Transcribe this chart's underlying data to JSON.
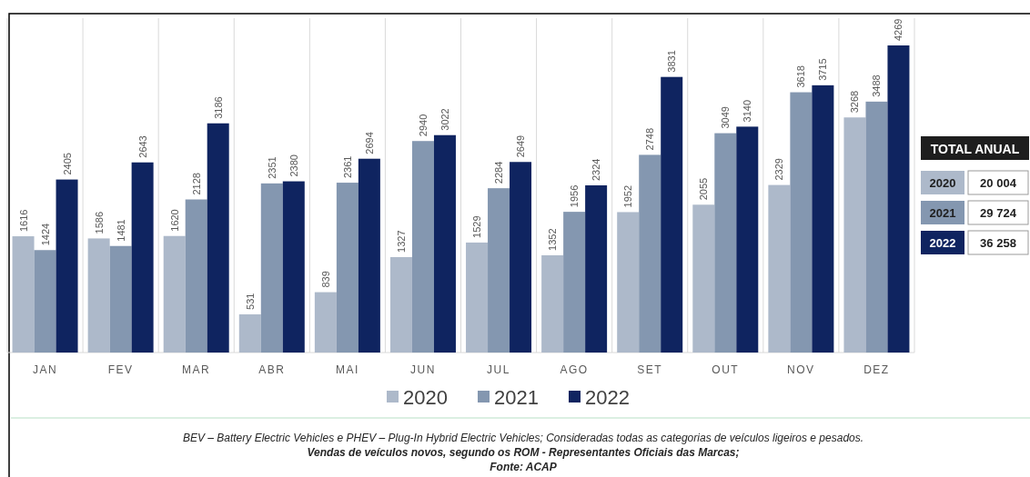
{
  "chart_data": [
    {
      "type": "bar",
      "categories": [
        "JAN",
        "FEV",
        "MAR",
        "ABR",
        "MAI",
        "JUN",
        "JUL",
        "AGO",
        "SET",
        "OUT",
        "NOV",
        "DEZ"
      ],
      "series": [
        {
          "name": "2020",
          "color": "#adb9ca",
          "values": [
            1616,
            1586,
            1620,
            531,
            839,
            1327,
            1529,
            1352,
            1952,
            2055,
            2329,
            3268
          ]
        },
        {
          "name": "2021",
          "color": "#8497b0",
          "values": [
            1424,
            1481,
            2128,
            2351,
            2361,
            2940,
            2284,
            1956,
            2748,
            3049,
            3618,
            3488
          ]
        },
        {
          "name": "2022",
          "color": "#0f2460",
          "values": [
            2405,
            2643,
            3186,
            2380,
            2694,
            3022,
            2649,
            2324,
            3831,
            3140,
            3715,
            4269
          ]
        }
      ],
      "data_labels": true,
      "legend": "bottom",
      "annotations": [
        "BEV – Battery Electric Vehicles e PHEV – Plug-In Hybrid Electric Vehicles; Consideradas todas as categorias de veículos ligeiros e pesados.",
        "Vendas de veículos novos, segundo os ROM - Representantes Oficiais das Marcas;",
        "Fonte: ACAP"
      ]
    },
    {
      "type": "other",
      "title": "TOTAL ANUAL",
      "annotations": [
        "2020",
        "20 004",
        "2021",
        "29 724",
        "2022",
        "36 258"
      ]
    }
  ]
}
